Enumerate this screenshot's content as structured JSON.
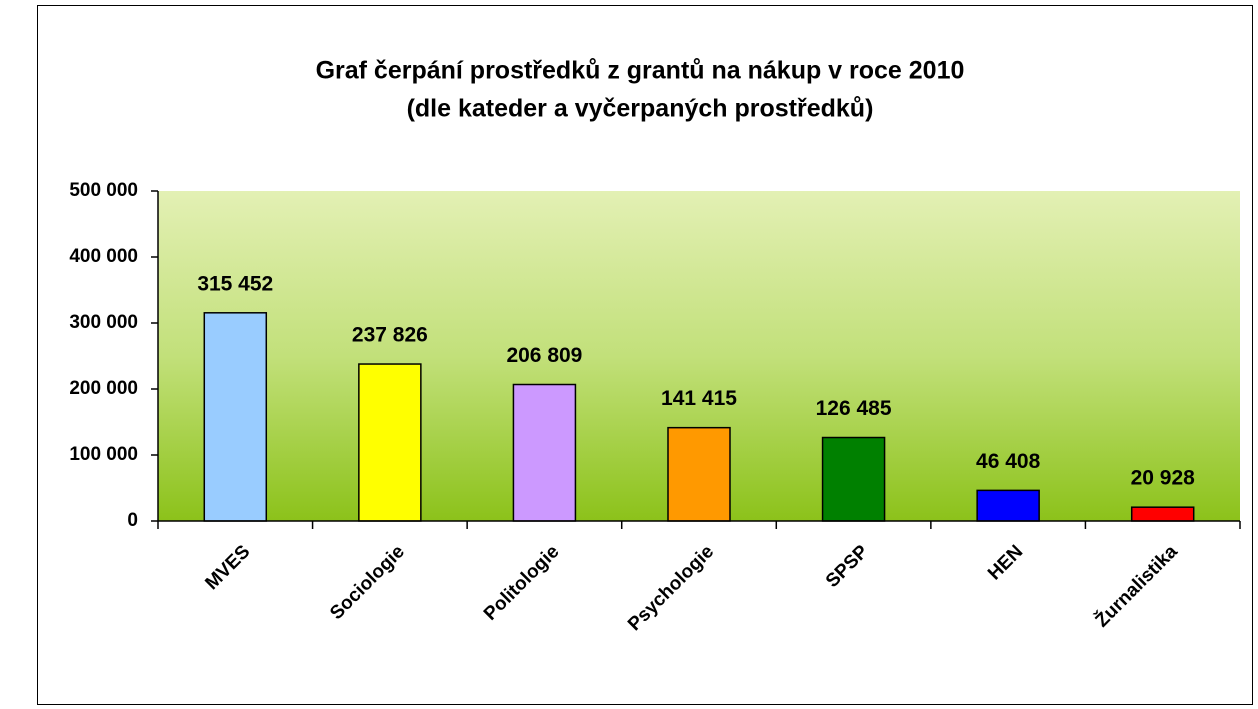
{
  "chart_data": {
    "type": "bar",
    "title": "Graf čerpání prostředků z grantů na nákup v roce 2010",
    "subtitle": "(dle kateder a vyčerpaných prostředků)",
    "categories": [
      "MVES",
      "Sociologie",
      "Politologie",
      "Psychologie",
      "SPSP",
      "HEN",
      "Žurnalistika"
    ],
    "values": [
      315452,
      237826,
      206809,
      141415,
      126485,
      46408,
      20928
    ],
    "value_labels": [
      "315 452",
      "237 826",
      "206 809",
      "141 415",
      "126 485",
      "46 408",
      "20 928"
    ],
    "colors": [
      "#99ccff",
      "#ffff00",
      "#cc99ff",
      "#ff9900",
      "#008000",
      "#0000ff",
      "#ff0000"
    ],
    "ylim": [
      0,
      500000
    ],
    "yticks": [
      0,
      {
        "value": 100000,
        "label": "100 000"
      },
      {
        "value": 200000,
        "label": "200 000"
      },
      {
        "value": 300000,
        "label": "300 000"
      },
      {
        "value": 400000,
        "label": "400 000"
      },
      {
        "value": 500000,
        "label": "500 000"
      }
    ],
    "grid": false
  }
}
